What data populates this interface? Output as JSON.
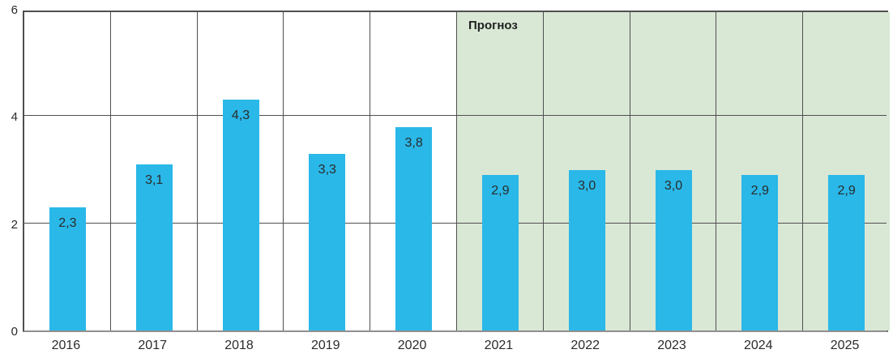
{
  "chart_data": {
    "type": "bar",
    "title": "",
    "xlabel": "",
    "ylabel": "",
    "categories": [
      "2016",
      "2017",
      "2018",
      "2019",
      "2020",
      "2021",
      "2022",
      "2023",
      "2024",
      "2025"
    ],
    "values": [
      2.3,
      3.1,
      4.3,
      3.3,
      3.8,
      2.9,
      3.0,
      3.0,
      2.9,
      2.9
    ],
    "value_labels": [
      "2,3",
      "3,1",
      "4,3",
      "3,3",
      "3,8",
      "2,9",
      "3,0",
      "3,0",
      "2,9",
      "2,9"
    ],
    "ylim": [
      0,
      6
    ],
    "yticks": [
      0,
      2,
      4,
      6
    ],
    "ytick_labels": [
      "0",
      "2",
      "4",
      "6"
    ],
    "grid": true,
    "legend": "none",
    "forecast_start_index": 5,
    "forecast_label": "Прогноз"
  },
  "colors": {
    "bar": "#29b8e8",
    "forecast_background": "#d9e8d5",
    "gridline": "#4f4f4f",
    "axis_bottom": "#8f8f8f",
    "text": "#2b2b2b"
  }
}
